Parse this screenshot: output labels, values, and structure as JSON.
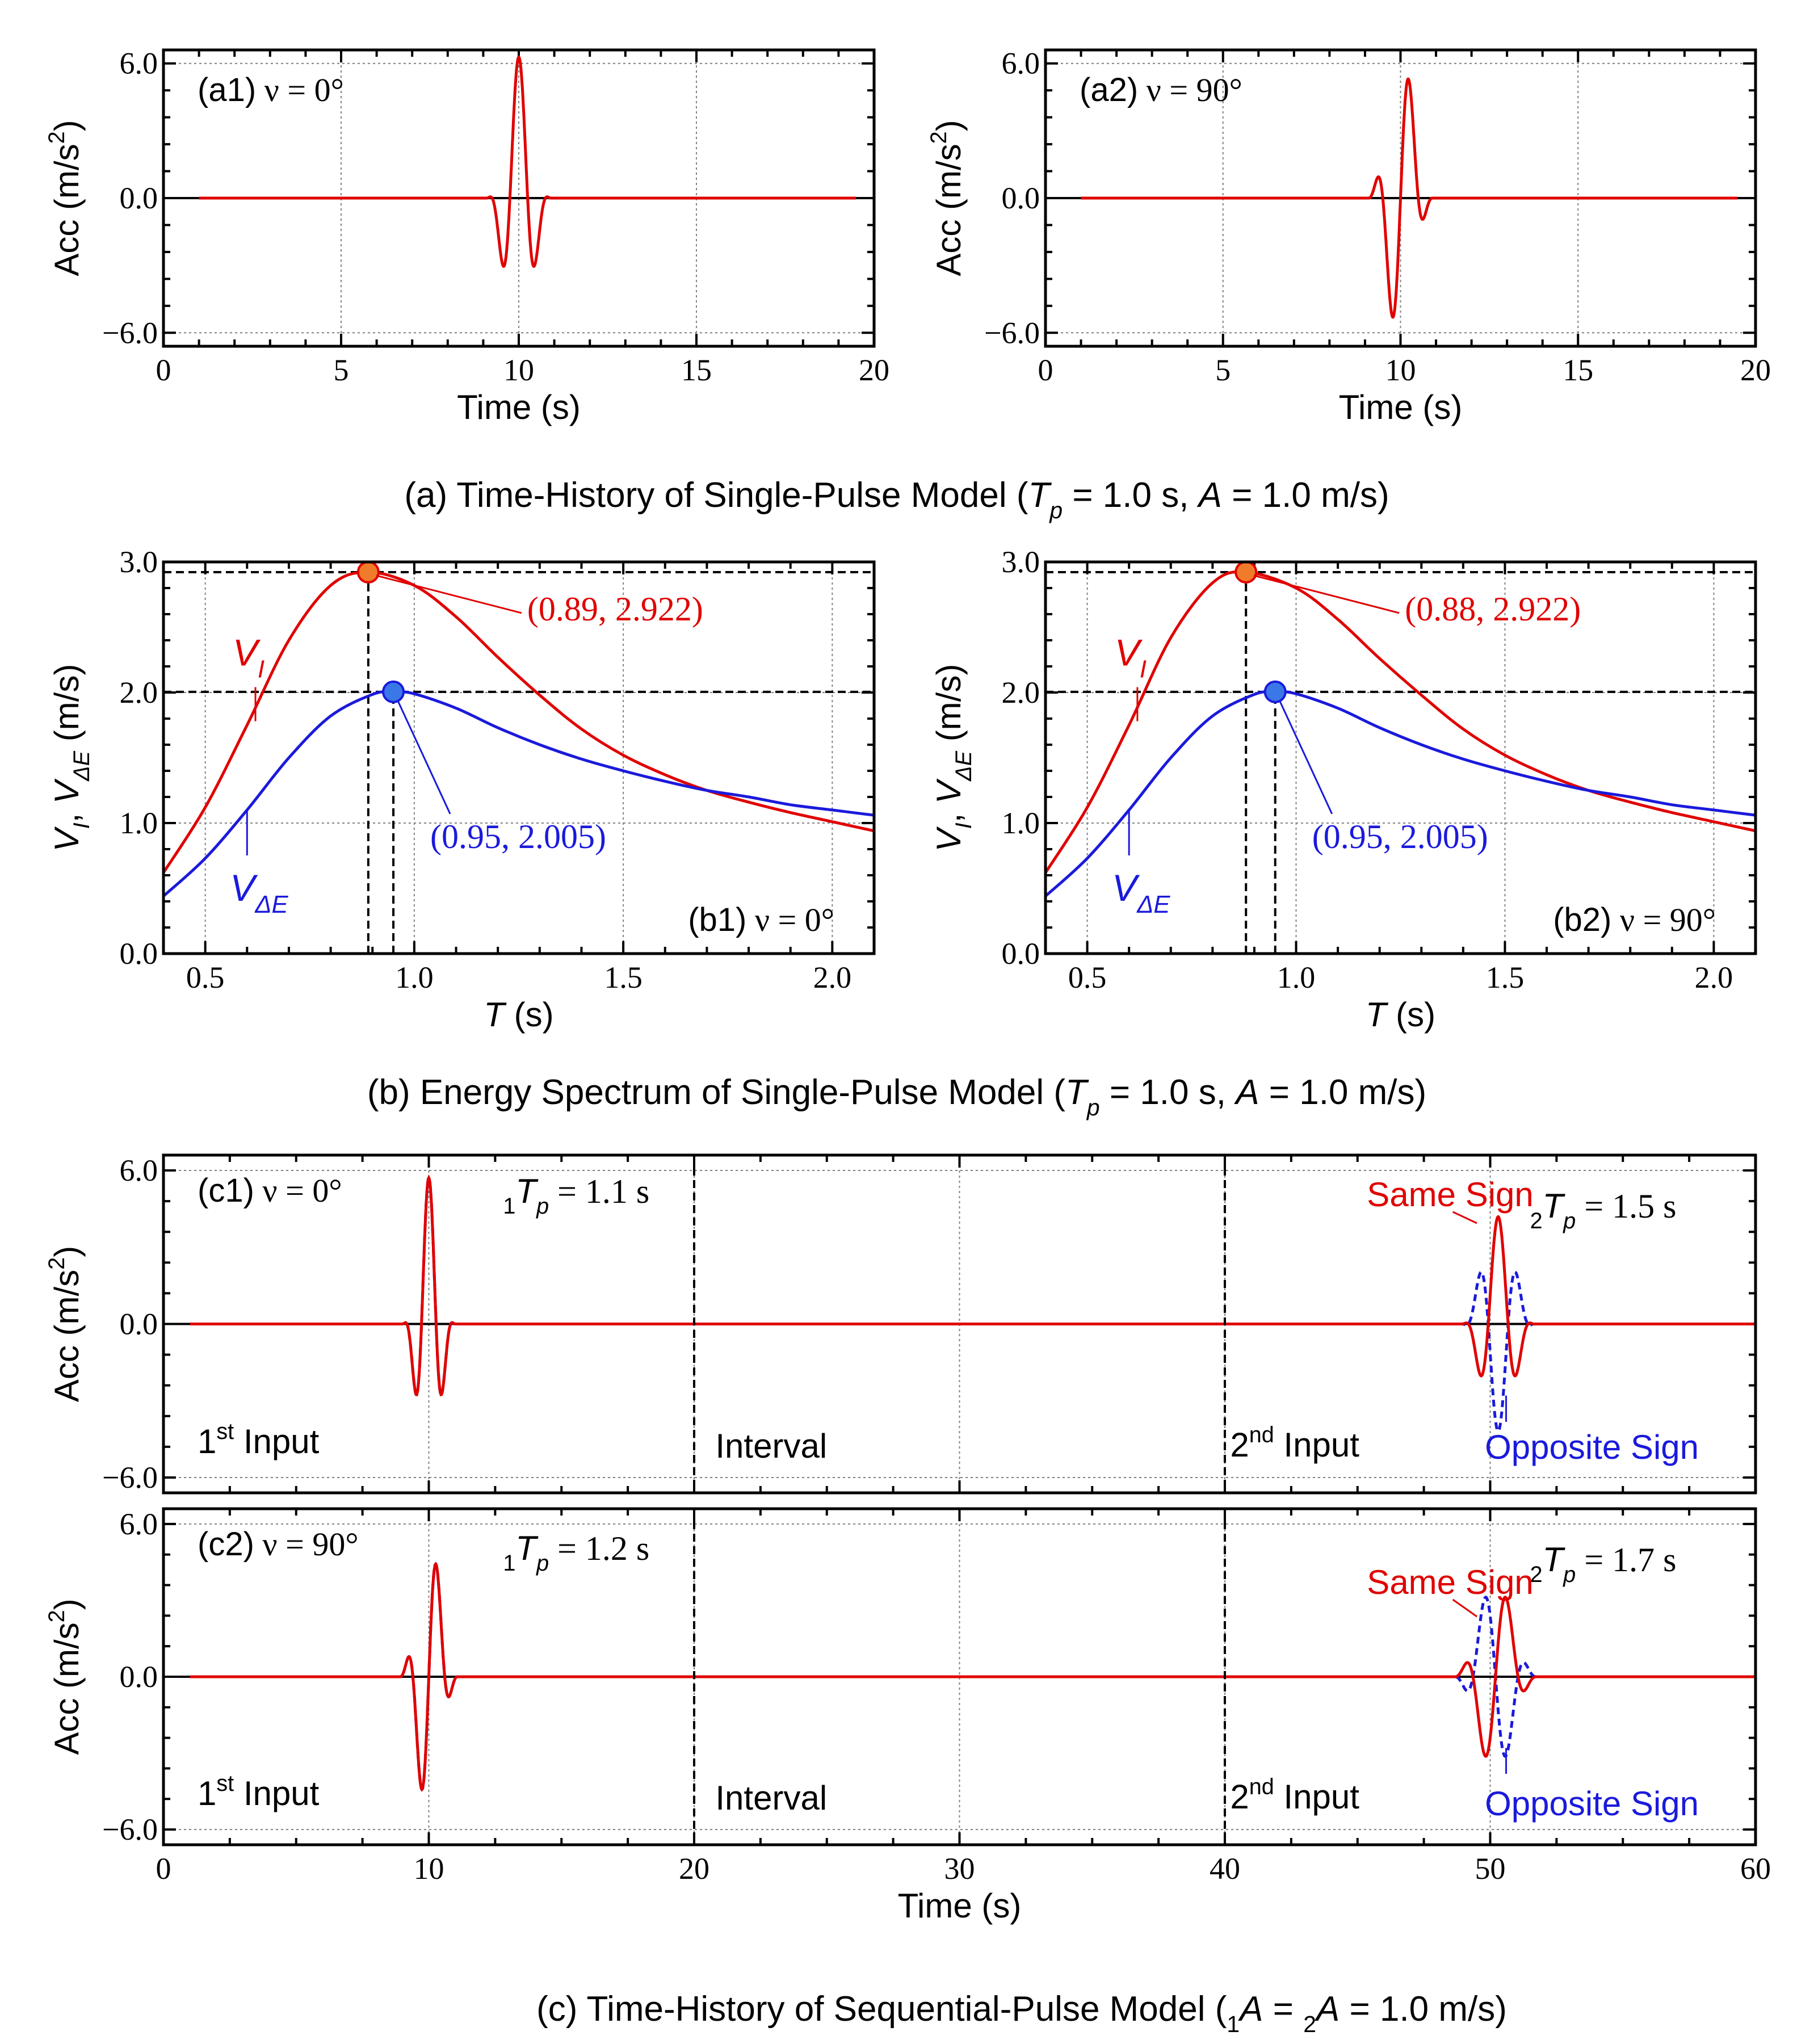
{
  "colors": {
    "red": "#e00000",
    "blue": "#1a1adc",
    "axis": "#000000",
    "grid": "#808080",
    "orange_marker": "#f07b2a",
    "blue_marker": "#3b78e7"
  },
  "captions": {
    "a": [
      "(a) Time-History of Single-Pulse Model (",
      "T",
      "p",
      " = 1.0 s, ",
      "A",
      " = 1.0 m/s)"
    ],
    "b": [
      "(b) Energy Spectrum of Single-Pulse Model (",
      "T",
      "p",
      " = 1.0 s, ",
      "A",
      " = 1.0 m/s)"
    ],
    "c": [
      "(c) Time-History of Sequential-Pulse Model (",
      "1",
      "A",
      " = ",
      "2",
      "A",
      " = 1.0 m/s)"
    ]
  },
  "chart_data": [
    {
      "id": "a1",
      "type": "line",
      "panel_label": "(a1) ν = 0°",
      "xlabel": "Time (s)",
      "ylabel": [
        "Acc (m/s",
        "2",
        ")"
      ],
      "xlim": [
        0,
        20
      ],
      "ylim": [
        -6.6,
        6.6
      ],
      "xticks": [
        "0",
        "5",
        "10",
        "15",
        "20"
      ],
      "yticks": [
        "−6.0",
        "0.0",
        "6.0"
      ],
      "grid": true,
      "series": [
        {
          "color": "red",
          "model": {
            "tc": 10.0,
            "Tp": 1.0,
            "nu_deg": 0,
            "amp": 6.28,
            "range": [
              1,
              19.5
            ]
          }
        }
      ]
    },
    {
      "id": "a2",
      "type": "line",
      "panel_label": "(a2) ν = 90°",
      "xlabel": "Time (s)",
      "ylabel": [
        "Acc (m/s",
        "2",
        ")"
      ],
      "xlim": [
        0,
        20
      ],
      "ylim": [
        -6.6,
        6.6
      ],
      "xticks": [
        "0",
        "5",
        "10",
        "15",
        "20"
      ],
      "yticks": [
        "−6.0",
        "0.0",
        "6.0"
      ],
      "grid": true,
      "series": [
        {
          "color": "red",
          "model": {
            "tc": 10.0,
            "Tp": 1.0,
            "nu_deg": 90,
            "amp": 6.28,
            "range": [
              1,
              19.5
            ]
          }
        }
      ]
    },
    {
      "id": "b1",
      "type": "line",
      "panel_label": "(b1) ν = 0°",
      "xlabel": "T (s)",
      "ylabel": "V_I, V_ΔE (m/s)",
      "xlim": [
        0.4,
        2.1
      ],
      "ylim": [
        0,
        3.0
      ],
      "xticks": [
        "0.5",
        "1.0",
        "1.5",
        "2.0"
      ],
      "yticks": [
        "0.0",
        "1.0",
        "2.0",
        "3.0"
      ],
      "grid": true,
      "series": [
        {
          "name": "V_I",
          "color": "red",
          "x": [
            0.4,
            0.5,
            0.6,
            0.7,
            0.8,
            0.89,
            1.0,
            1.1,
            1.2,
            1.3,
            1.4,
            1.5,
            1.6,
            1.7,
            1.8,
            1.9,
            2.0,
            2.1
          ],
          "y": [
            0.62,
            1.12,
            1.75,
            2.4,
            2.82,
            2.922,
            2.82,
            2.58,
            2.27,
            1.98,
            1.72,
            1.52,
            1.37,
            1.25,
            1.16,
            1.08,
            1.01,
            0.94
          ]
        },
        {
          "name": "V_ΔE",
          "color": "blue",
          "x": [
            0.4,
            0.5,
            0.6,
            0.7,
            0.8,
            0.9,
            0.95,
            1.0,
            1.1,
            1.2,
            1.3,
            1.4,
            1.5,
            1.6,
            1.7,
            1.8,
            1.9,
            2.0,
            2.1
          ],
          "y": [
            0.44,
            0.73,
            1.1,
            1.5,
            1.82,
            1.985,
            2.005,
            1.99,
            1.88,
            1.73,
            1.6,
            1.49,
            1.4,
            1.32,
            1.25,
            1.2,
            1.14,
            1.1,
            1.06
          ]
        }
      ],
      "markers": [
        {
          "x": 0.89,
          "y": 2.922,
          "label": "(0.89, 2.922)",
          "color": "red"
        },
        {
          "x": 0.95,
          "y": 2.005,
          "label": "(0.95, 2.005)",
          "color": "blue"
        }
      ]
    },
    {
      "id": "b2",
      "type": "line",
      "panel_label": "(b2) ν = 90°",
      "xlabel": "T (s)",
      "ylabel": "V_I, V_ΔE (m/s)",
      "xlim": [
        0.4,
        2.1
      ],
      "ylim": [
        0,
        3.0
      ],
      "xticks": [
        "0.5",
        "1.0",
        "1.5",
        "2.0"
      ],
      "yticks": [
        "0.0",
        "1.0",
        "2.0",
        "3.0"
      ],
      "grid": true,
      "series": [
        {
          "name": "V_I",
          "color": "red",
          "x": [
            0.4,
            0.5,
            0.6,
            0.7,
            0.8,
            0.88,
            1.0,
            1.1,
            1.2,
            1.3,
            1.4,
            1.5,
            1.6,
            1.7,
            1.8,
            1.9,
            2.0,
            2.1
          ],
          "y": [
            0.62,
            1.12,
            1.75,
            2.42,
            2.84,
            2.922,
            2.8,
            2.56,
            2.26,
            1.98,
            1.72,
            1.52,
            1.37,
            1.25,
            1.16,
            1.08,
            1.01,
            0.94
          ]
        },
        {
          "name": "V_ΔE",
          "color": "blue",
          "x": [
            0.4,
            0.5,
            0.6,
            0.7,
            0.8,
            0.9,
            0.95,
            1.0,
            1.1,
            1.2,
            1.3,
            1.4,
            1.5,
            1.6,
            1.7,
            1.8,
            1.9,
            2.0,
            2.1
          ],
          "y": [
            0.44,
            0.73,
            1.1,
            1.5,
            1.82,
            1.985,
            2.005,
            1.99,
            1.88,
            1.73,
            1.6,
            1.49,
            1.4,
            1.32,
            1.25,
            1.2,
            1.14,
            1.1,
            1.06
          ]
        }
      ],
      "markers": [
        {
          "x": 0.88,
          "y": 2.922,
          "label": "(0.88, 2.922)",
          "color": "red"
        },
        {
          "x": 0.95,
          "y": 2.005,
          "label": "(0.95, 2.005)",
          "color": "blue"
        }
      ]
    },
    {
      "id": "c1",
      "type": "line",
      "panel_label": "(c1) ν = 0°",
      "xlabel": "",
      "ylabel": [
        "Acc (m/s",
        "2",
        ")"
      ],
      "xlim": [
        0,
        60
      ],
      "ylim": [
        -6.6,
        6.6
      ],
      "xticks": [
        "0",
        "10",
        "20",
        "30",
        "40",
        "50",
        "60"
      ],
      "yticks": [
        "−6.0",
        "0.0",
        "6.0"
      ],
      "grid": true,
      "period_labels": {
        "first": [
          "1",
          "T",
          "p",
          " = 1.1 s"
        ],
        "second": [
          "2",
          "T",
          "p",
          " = 1.5 s"
        ]
      },
      "segments": {
        "first": [
          "1",
          "st",
          " Input"
        ],
        "interval": "Interval",
        "second": [
          "2",
          "nd",
          " Input"
        ]
      },
      "segment_bounds": [
        20,
        40
      ],
      "legend": {
        "same": "Same Sign",
        "opposite": "Opposite Sign"
      },
      "series": [
        {
          "name": "Same Sign",
          "color": "red",
          "pulses": [
            {
              "tc": 10.0,
              "Tp": 1.1,
              "nu_deg": 0,
              "amp": 5.71,
              "sign": 1
            },
            {
              "tc": 50.3,
              "Tp": 1.5,
              "nu_deg": 0,
              "amp": 4.19,
              "sign": 1
            }
          ]
        },
        {
          "name": "Opposite Sign",
          "color": "blue",
          "pulses": [
            {
              "tc": 10.0,
              "Tp": 1.1,
              "nu_deg": 0,
              "amp": 5.71,
              "sign": 1
            },
            {
              "tc": 50.3,
              "Tp": 1.5,
              "nu_deg": 0,
              "amp": 4.19,
              "sign": -1
            }
          ]
        }
      ]
    },
    {
      "id": "c2",
      "type": "line",
      "panel_label": "(c2) ν = 90°",
      "xlabel": "Time (s)",
      "ylabel": [
        "Acc (m/s",
        "2",
        ")"
      ],
      "xlim": [
        0,
        60
      ],
      "ylim": [
        -6.6,
        6.6
      ],
      "xticks": [
        "0",
        "10",
        "20",
        "30",
        "40",
        "50",
        "60"
      ],
      "yticks": [
        "−6.0",
        "0.0",
        "6.0"
      ],
      "grid": true,
      "period_labels": {
        "first": [
          "1",
          "T",
          "p",
          " = 1.2 s"
        ],
        "second": [
          "2",
          "T",
          "p",
          " = 1.7 s"
        ]
      },
      "segments": {
        "first": [
          "1",
          "st",
          " Input"
        ],
        "interval": "Interval",
        "second": [
          "2",
          "nd",
          " Input"
        ]
      },
      "segment_bounds": [
        20,
        40
      ],
      "legend": {
        "same": "Same Sign",
        "opposite": "Opposite Sign"
      },
      "series": [
        {
          "name": "Same Sign",
          "color": "red",
          "pulses": [
            {
              "tc": 10.0,
              "Tp": 1.2,
              "nu_deg": 90,
              "amp": 5.24,
              "sign": 1
            },
            {
              "tc": 50.2,
              "Tp": 1.7,
              "nu_deg": 90,
              "amp": 3.7,
              "sign": 1
            }
          ]
        },
        {
          "name": "Opposite Sign",
          "color": "blue",
          "pulses": [
            {
              "tc": 10.0,
              "Tp": 1.2,
              "nu_deg": 90,
              "amp": 5.24,
              "sign": 1
            },
            {
              "tc": 50.2,
              "Tp": 1.7,
              "nu_deg": 90,
              "amp": 3.7,
              "sign": -1
            }
          ]
        }
      ]
    }
  ]
}
